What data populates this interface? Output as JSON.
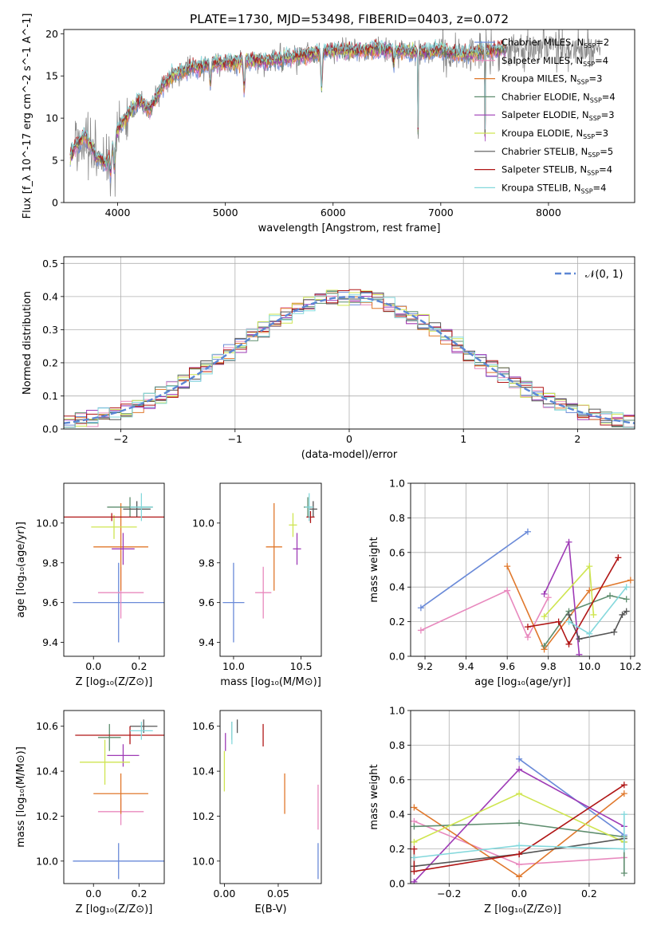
{
  "figure_title": "PLATE=1730, MJD=53498, FIBERID=0403, z=0.072",
  "chart_data": [
    {
      "id": "spectrum",
      "type": "line",
      "title": "PLATE=1730, MJD=53498, FIBERID=0403, z=0.072",
      "xlabel": "wavelength [Angstrom, rest frame]",
      "ylabel": "Flux [f_λ 10^-17 erg cm^-2 s^-1 A^-1]",
      "xlim": [
        3500,
        8800
      ],
      "ylim": [
        0,
        20.5
      ],
      "xticks": [
        4000,
        5000,
        6000,
        7000,
        8000
      ],
      "yticks": [
        0,
        5,
        10,
        15,
        20
      ],
      "grid": false,
      "legend_position": "upper-right",
      "continuum": {
        "x": [
          3550,
          3600,
          3700,
          3800,
          3900,
          4000,
          4100,
          4200,
          4300,
          4400,
          4500,
          4600,
          4700,
          4800,
          4900,
          5000,
          5200,
          5400,
          5600,
          5800,
          6000,
          6200,
          6400,
          6600,
          6800,
          7000,
          7200,
          7400,
          7600
        ],
        "y": [
          5.0,
          6.5,
          8.0,
          5.5,
          4.5,
          8.5,
          10.5,
          12.0,
          11.0,
          13.5,
          15.0,
          15.5,
          16.0,
          16.2,
          16.5,
          16.5,
          16.8,
          16.7,
          17.2,
          17.5,
          18.0,
          18.0,
          18.2,
          18.0,
          17.8,
          18.0,
          17.5,
          17.8,
          18.2
        ]
      },
      "absorption_dips": [
        {
          "wavelength": 3934,
          "flux": 3.5
        },
        {
          "wavelength": 3969,
          "flux": 4.0
        },
        {
          "wavelength": 4861,
          "flux": 14.0
        },
        {
          "wavelength": 5175,
          "flux": 13.5
        },
        {
          "wavelength": 5893,
          "flux": 13.5
        },
        {
          "wavelength": 6563,
          "flux": 16.5
        },
        {
          "wavelength": 6790,
          "flux": 0.0
        },
        {
          "wavelength": 7410,
          "flux": 0.0
        }
      ],
      "series": [
        {
          "name": "Chabrier MILES, N_SSP=2",
          "label_main": "Chabrier MILES, N",
          "label_sub": "SSP",
          "label_tail": "=2",
          "color": "#6a8ad8"
        },
        {
          "name": "Salpeter MILES, N_SSP=4",
          "label_main": "Salpeter MILES, N",
          "label_sub": "SSP",
          "label_tail": "=4",
          "color": "#e889be"
        },
        {
          "name": "Kroupa MILES, N_SSP=3",
          "label_main": "Kroupa MILES, N",
          "label_sub": "SSP",
          "label_tail": "=3",
          "color": "#e0782c"
        },
        {
          "name": "Chabrier ELODIE, N_SSP=4",
          "label_main": "Chabrier ELODIE, N",
          "label_sub": "SSP",
          "label_tail": "=4",
          "color": "#5e8d6e"
        },
        {
          "name": "Salpeter ELODIE, N_SSP=3",
          "label_main": "Salpeter ELODIE, N",
          "label_sub": "SSP",
          "label_tail": "=3",
          "color": "#9e3bb6"
        },
        {
          "name": "Kroupa ELODIE, N_SSP=3",
          "label_main": "Kroupa ELODIE, N",
          "label_sub": "SSP",
          "label_tail": "=3",
          "color": "#cfe550"
        },
        {
          "name": "Chabrier STELIB, N_SSP=5",
          "label_main": "Chabrier STELIB, N",
          "label_sub": "SSP",
          "label_tail": "=5",
          "color": "#555555"
        },
        {
          "name": "Salpeter STELIB, N_SSP=4",
          "label_main": "Salpeter STELIB, N",
          "label_sub": "SSP",
          "label_tail": "=4",
          "color": "#b01616"
        },
        {
          "name": "Kroupa STELIB, N_SSP=4",
          "label_main": "Kroupa STELIB, N",
          "label_sub": "SSP",
          "label_tail": "=4",
          "color": "#84d8dc"
        }
      ]
    },
    {
      "id": "residuals",
      "type": "histogram",
      "xlabel": "(data-model)/error",
      "ylabel": "Normed distribution",
      "xlim": [
        -2.5,
        2.5
      ],
      "ylim": [
        0,
        0.52
      ],
      "xticks": [
        -2,
        -1,
        0,
        1,
        2
      ],
      "xtick_labels": [
        "−2",
        "−1",
        "0",
        "1",
        "2"
      ],
      "yticks": [
        0.0,
        0.1,
        0.2,
        0.3,
        0.4,
        0.5
      ],
      "ytick_labels": [
        "0.0",
        "0.1",
        "0.2",
        "0.3",
        "0.4",
        "0.5"
      ],
      "grid": true,
      "bin_width": 0.1,
      "legend_label": "𝒩(0, 1)",
      "reference_curve": "normal(0,1)"
    },
    {
      "id": "age_vs_Z",
      "type": "errorbar",
      "xlabel": "Z [log₁₀(Z/Z⊙)]",
      "ylabel": "age  [log₁₀(age/yr)]",
      "xlim": [
        -0.13,
        0.31
      ],
      "ylim": [
        9.33,
        10.2
      ],
      "xticks": [
        0.0,
        0.2
      ],
      "yticks": [
        9.4,
        9.6,
        9.8,
        10.0
      ],
      "points": [
        {
          "x": 0.11,
          "xerr": 0.2,
          "y": 9.6,
          "yerr": 0.2,
          "color": "#6a8ad8"
        },
        {
          "x": 0.12,
          "xerr": 0.1,
          "y": 9.65,
          "yerr": 0.13,
          "color": "#e889be"
        },
        {
          "x": 0.12,
          "xerr": 0.12,
          "y": 9.88,
          "yerr": 0.22,
          "color": "#e0782c"
        },
        {
          "x": 0.16,
          "xerr": 0.1,
          "y": 10.08,
          "yerr": 0.05,
          "color": "#5e8d6e"
        },
        {
          "x": 0.13,
          "xerr": 0.05,
          "y": 9.87,
          "yerr": 0.08,
          "color": "#9e3bb6"
        },
        {
          "x": 0.09,
          "xerr": 0.1,
          "y": 9.98,
          "yerr": 0.06,
          "color": "#cfe550"
        },
        {
          "x": 0.19,
          "xerr": 0.06,
          "y": 10.07,
          "yerr": 0.04,
          "color": "#555555"
        },
        {
          "x": 0.08,
          "xerr": 0.24,
          "y": 10.03,
          "yerr": 0.02,
          "color": "#b01616"
        },
        {
          "x": 0.21,
          "xerr": 0.05,
          "y": 10.08,
          "yerr": 0.07,
          "color": "#84d8dc"
        }
      ]
    },
    {
      "id": "age_vs_mass",
      "type": "errorbar",
      "xlabel": "mass [log₁₀(M/M⊙)]",
      "ylabel": "",
      "xlim": [
        9.9,
        10.65
      ],
      "ylim": [
        9.33,
        10.2
      ],
      "xticks": [
        10.0,
        10.5
      ],
      "yticks": [
        9.4,
        9.6,
        9.8,
        10.0
      ],
      "points": [
        {
          "x": 10.0,
          "xerr": 0.08,
          "y": 9.6,
          "yerr": 0.2,
          "color": "#6a8ad8"
        },
        {
          "x": 10.22,
          "xerr": 0.06,
          "y": 9.65,
          "yerr": 0.13,
          "color": "#e889be"
        },
        {
          "x": 10.3,
          "xerr": 0.06,
          "y": 9.88,
          "yerr": 0.22,
          "color": "#e0782c"
        },
        {
          "x": 10.55,
          "xerr": 0.03,
          "y": 10.08,
          "yerr": 0.05,
          "color": "#5e8d6e"
        },
        {
          "x": 10.47,
          "xerr": 0.03,
          "y": 9.87,
          "yerr": 0.08,
          "color": "#9e3bb6"
        },
        {
          "x": 10.44,
          "xerr": 0.03,
          "y": 9.99,
          "yerr": 0.06,
          "color": "#cfe550"
        },
        {
          "x": 10.59,
          "xerr": 0.03,
          "y": 10.07,
          "yerr": 0.04,
          "color": "#555555"
        },
        {
          "x": 10.57,
          "xerr": 0.03,
          "y": 10.03,
          "yerr": 0.03,
          "color": "#b01616"
        },
        {
          "x": 10.56,
          "xerr": 0.03,
          "y": 10.08,
          "yerr": 0.07,
          "color": "#84d8dc"
        }
      ]
    },
    {
      "id": "weight_vs_age",
      "type": "line",
      "xlabel": "age  [log₁₀(age/yr)]",
      "ylabel": "mass weight",
      "xlim": [
        9.13,
        10.22
      ],
      "ylim": [
        0,
        1.0
      ],
      "xticks": [
        9.2,
        9.4,
        9.6,
        9.8,
        10.0,
        10.2
      ],
      "yticks": [
        0.0,
        0.2,
        0.4,
        0.6,
        0.8,
        1.0
      ],
      "grid": true,
      "series": [
        {
          "color": "#6a8ad8",
          "x": [
            9.18,
            9.7
          ],
          "y": [
            0.28,
            0.72
          ]
        },
        {
          "color": "#e889be",
          "x": [
            9.18,
            9.6,
            9.7,
            9.8
          ],
          "y": [
            0.15,
            0.38,
            0.11,
            0.34
          ]
        },
        {
          "color": "#e0782c",
          "x": [
            9.6,
            9.78,
            10.0,
            10.2
          ],
          "y": [
            0.52,
            0.04,
            0.38,
            0.44
          ]
        },
        {
          "color": "#5e8d6e",
          "x": [
            9.78,
            9.9,
            10.1,
            10.18
          ],
          "y": [
            0.06,
            0.26,
            0.35,
            0.33
          ]
        },
        {
          "color": "#9e3bb6",
          "x": [
            9.78,
            9.9,
            9.95
          ],
          "y": [
            0.36,
            0.66,
            0.01
          ]
        },
        {
          "color": "#cfe550",
          "x": [
            9.78,
            10.0,
            10.02
          ],
          "y": [
            0.23,
            0.52,
            0.24
          ]
        },
        {
          "color": "#555555",
          "x": [
            9.9,
            9.95,
            10.12,
            10.16,
            10.18
          ],
          "y": [
            0.24,
            0.1,
            0.14,
            0.24,
            0.26
          ]
        },
        {
          "color": "#b01616",
          "x": [
            9.7,
            9.85,
            9.9,
            10.14
          ],
          "y": [
            0.17,
            0.2,
            0.07,
            0.57
          ]
        },
        {
          "color": "#84d8dc",
          "x": [
            9.9,
            10.0,
            10.18
          ],
          "y": [
            0.2,
            0.13,
            0.4
          ]
        }
      ]
    },
    {
      "id": "mass_vs_Z",
      "type": "errorbar",
      "xlabel": "Z [log₁₀(Z/Z⊙)]",
      "ylabel": "mass [log₁₀(M/M⊙)]",
      "xlim": [
        -0.13,
        0.31
      ],
      "ylim": [
        9.9,
        10.67
      ],
      "xticks": [
        0.0,
        0.2
      ],
      "yticks": [
        10.0,
        10.2,
        10.4,
        10.6
      ],
      "points": [
        {
          "x": 0.11,
          "xerr": 0.2,
          "y": 10.0,
          "yerr": 0.08,
          "color": "#6a8ad8"
        },
        {
          "x": 0.12,
          "xerr": 0.1,
          "y": 10.22,
          "yerr": 0.06,
          "color": "#e889be"
        },
        {
          "x": 0.12,
          "xerr": 0.12,
          "y": 10.3,
          "yerr": 0.09,
          "color": "#e0782c"
        },
        {
          "x": 0.07,
          "xerr": 0.05,
          "y": 10.55,
          "yerr": 0.06,
          "color": "#5e8d6e"
        },
        {
          "x": 0.13,
          "xerr": 0.07,
          "y": 10.47,
          "yerr": 0.05,
          "color": "#9e3bb6"
        },
        {
          "x": 0.05,
          "xerr": 0.11,
          "y": 10.44,
          "yerr": 0.1,
          "color": "#cfe550"
        },
        {
          "x": 0.22,
          "xerr": 0.06,
          "y": 10.6,
          "yerr": 0.03,
          "color": "#555555"
        },
        {
          "x": 0.16,
          "xerr": 0.24,
          "y": 10.56,
          "yerr": 0.04,
          "color": "#b01616"
        },
        {
          "x": 0.21,
          "xerr": 0.05,
          "y": 10.58,
          "yerr": 0.04,
          "color": "#84d8dc"
        }
      ]
    },
    {
      "id": "mass_vs_ebv",
      "type": "errorbar",
      "xlabel": "E(B-V)",
      "ylabel": "",
      "xlim": [
        -0.004,
        0.09
      ],
      "ylim": [
        9.9,
        10.67
      ],
      "xticks": [
        0.0,
        0.05
      ],
      "yticks": [
        10.0,
        10.2,
        10.4,
        10.6
      ],
      "points": [
        {
          "x": 0.087,
          "xerr": 0,
          "y": 10.0,
          "yerr": 0.08,
          "color": "#6a8ad8"
        },
        {
          "x": 0.087,
          "xerr": 0,
          "y": 10.24,
          "yerr": 0.1,
          "color": "#e889be"
        },
        {
          "x": 0.056,
          "xerr": 0,
          "y": 10.3,
          "yerr": 0.09,
          "color": "#e0782c"
        },
        {
          "x": 0.007,
          "xerr": 0,
          "y": 10.58,
          "yerr": 0.04,
          "color": "#5e8d6e"
        },
        {
          "x": 0.001,
          "xerr": 0,
          "y": 10.53,
          "yerr": 0.04,
          "color": "#9e3bb6"
        },
        {
          "x": 0.0,
          "xerr": 0,
          "y": 10.4,
          "yerr": 0.09,
          "color": "#cfe550"
        },
        {
          "x": 0.012,
          "xerr": 0,
          "y": 10.6,
          "yerr": 0.03,
          "color": "#555555"
        },
        {
          "x": 0.036,
          "xerr": 0,
          "y": 10.56,
          "yerr": 0.05,
          "color": "#b01616"
        },
        {
          "x": 0.007,
          "xerr": 0,
          "y": 10.57,
          "yerr": 0.05,
          "color": "#84d8dc"
        }
      ]
    },
    {
      "id": "weight_vs_Z",
      "type": "line",
      "xlabel": "Z [log₁₀(Z/Z⊙)]",
      "ylabel": "mass weight",
      "xlim": [
        -0.31,
        0.33
      ],
      "ylim": [
        0,
        1.0
      ],
      "xticks": [
        -0.2,
        0.0,
        0.2
      ],
      "xtick_labels": [
        "−0.2",
        "0.0",
        "0.2"
      ],
      "yticks": [
        0.0,
        0.2,
        0.4,
        0.6,
        0.8,
        1.0
      ],
      "grid": true,
      "series": [
        {
          "color": "#6a8ad8",
          "x": [
            0.0,
            0.3,
            0.3
          ],
          "y": [
            0.72,
            0.28,
            0.24
          ]
        },
        {
          "color": "#e889be",
          "x": [
            -0.3,
            0.0,
            0.3
          ],
          "y": [
            0.36,
            0.11,
            0.15
          ]
        },
        {
          "color": "#e0782c",
          "x": [
            -0.3,
            0.0,
            0.3
          ],
          "y": [
            0.44,
            0.04,
            0.52
          ]
        },
        {
          "color": "#5e8d6e",
          "x": [
            -0.3,
            0.0,
            0.3,
            0.3
          ],
          "y": [
            0.33,
            0.35,
            0.27,
            0.06
          ]
        },
        {
          "color": "#9e3bb6",
          "x": [
            -0.3,
            0.0,
            0.3
          ],
          "y": [
            0.01,
            0.66,
            0.33
          ]
        },
        {
          "color": "#cfe550",
          "x": [
            -0.3,
            0.0,
            0.3
          ],
          "y": [
            0.24,
            0.52,
            0.24
          ]
        },
        {
          "color": "#555555",
          "x": [
            -0.3,
            0.0,
            0.3
          ],
          "y": [
            0.1,
            0.17,
            0.26
          ]
        },
        {
          "color": "#b01616",
          "x": [
            -0.3,
            -0.3,
            0.0,
            0.3
          ],
          "y": [
            0.2,
            0.07,
            0.17,
            0.57
          ]
        },
        {
          "color": "#84d8dc",
          "x": [
            -0.3,
            0.0,
            0.3,
            0.3
          ],
          "y": [
            0.15,
            0.22,
            0.2,
            0.4
          ]
        }
      ]
    }
  ]
}
